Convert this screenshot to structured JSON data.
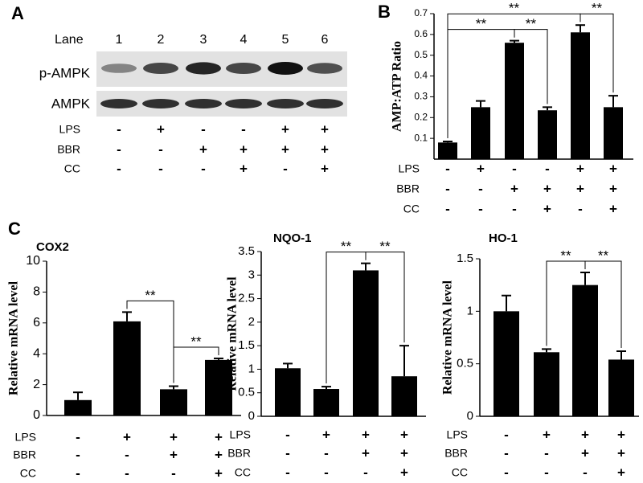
{
  "panel_labels": [
    "A",
    "B",
    "C"
  ],
  "blot": {
    "lane_label": "Lane",
    "lanes": [
      "1",
      "2",
      "3",
      "4",
      "5",
      "6"
    ],
    "rows": [
      "p-AMPK",
      "AMPK"
    ],
    "treatments": [
      {
        "name": "LPS",
        "signs": [
          "-",
          "+",
          "-",
          "-",
          "+",
          "+"
        ]
      },
      {
        "name": "BBR",
        "signs": [
          "-",
          "-",
          "+",
          "+",
          "+",
          "+"
        ]
      },
      {
        "name": "CC",
        "signs": [
          "-",
          "-",
          "-",
          "+",
          "-",
          "+"
        ]
      }
    ]
  },
  "chart_data": [
    {
      "type": "bar",
      "y_label": "AMP:ATP Ratio",
      "color": "#000000",
      "values": [
        0.08,
        0.25,
        0.56,
        0.235,
        0.61,
        0.25
      ],
      "errors": [
        0.005,
        0.03,
        0.01,
        0.015,
        0.035,
        0.055
      ],
      "ylim": [
        0,
        0.7
      ],
      "yticks": [
        0.1,
        0.2,
        0.3,
        0.4,
        0.5,
        0.6,
        0.7
      ],
      "treatments": [
        {
          "name": "LPS",
          "signs": [
            "-",
            "+",
            "-",
            "-",
            "+",
            "+"
          ]
        },
        {
          "name": "BBR",
          "signs": [
            "-",
            "-",
            "+",
            "+",
            "+",
            "+"
          ]
        },
        {
          "name": "CC",
          "signs": [
            "-",
            "-",
            "-",
            "+",
            "-",
            "+"
          ]
        }
      ],
      "annotations": [
        {
          "text": "**",
          "from": 0,
          "to": 4
        },
        {
          "text": "**",
          "from": 0,
          "to": 2
        },
        {
          "text": "**",
          "from": 2,
          "to": 3
        },
        {
          "text": "**",
          "from": 4,
          "to": 5
        }
      ]
    },
    {
      "type": "bar",
      "title": "COX2",
      "y_label": "Relative mRNA level",
      "color": "#000000",
      "values": [
        1,
        6.1,
        1.7,
        3.6
      ],
      "errors": [
        0.5,
        0.6,
        0.2,
        0.1
      ],
      "ylim": [
        0,
        10
      ],
      "yticks": [
        0,
        2,
        4,
        6,
        8,
        10
      ],
      "treatments": [
        {
          "name": "LPS",
          "signs": [
            "-",
            "+",
            "+",
            "+"
          ]
        },
        {
          "name": "BBR",
          "signs": [
            "-",
            "-",
            "+",
            "+"
          ]
        },
        {
          "name": "CC",
          "signs": [
            "-",
            "-",
            "-",
            "+"
          ]
        }
      ],
      "annotations": [
        {
          "text": "**",
          "from": 1,
          "to": 2
        },
        {
          "text": "**",
          "from": 2,
          "to": 3
        }
      ]
    },
    {
      "type": "bar",
      "title": "NQO-1",
      "y_label": "Relative mRNA level",
      "color": "#000000",
      "values": [
        1.02,
        0.58,
        3.1,
        0.85
      ],
      "errors": [
        0.1,
        0.05,
        0.15,
        0.65
      ],
      "ylim": [
        0,
        3.5
      ],
      "yticks": [
        0,
        0.5,
        1,
        1.5,
        2,
        2.5,
        3,
        3.5
      ],
      "treatments": [
        {
          "name": "LPS",
          "signs": [
            "-",
            "+",
            "+",
            "+"
          ]
        },
        {
          "name": "BBR",
          "signs": [
            "-",
            "-",
            "+",
            "+"
          ]
        },
        {
          "name": "CC",
          "signs": [
            "-",
            "-",
            "-",
            "+"
          ]
        }
      ],
      "annotations": [
        {
          "text": "**",
          "from": 1,
          "to": 2
        },
        {
          "text": "**",
          "from": 2,
          "to": 3
        }
      ]
    },
    {
      "type": "bar",
      "title": "HO-1",
      "y_label": "Relative mRNA level",
      "color": "#000000",
      "values": [
        1.0,
        0.61,
        1.25,
        0.54
      ],
      "errors": [
        0.15,
        0.03,
        0.12,
        0.08
      ],
      "ylim": [
        0,
        1.5
      ],
      "yticks": [
        0,
        0.5,
        1,
        1.5
      ],
      "treatments": [
        {
          "name": "LPS",
          "signs": [
            "-",
            "+",
            "+",
            "+"
          ]
        },
        {
          "name": "BBR",
          "signs": [
            "-",
            "-",
            "+",
            "+"
          ]
        },
        {
          "name": "CC",
          "signs": [
            "-",
            "-",
            "-",
            "+"
          ]
        }
      ],
      "annotations": [
        {
          "text": "**",
          "from": 1,
          "to": 2
        },
        {
          "text": "**",
          "from": 2,
          "to": 3
        }
      ]
    }
  ]
}
